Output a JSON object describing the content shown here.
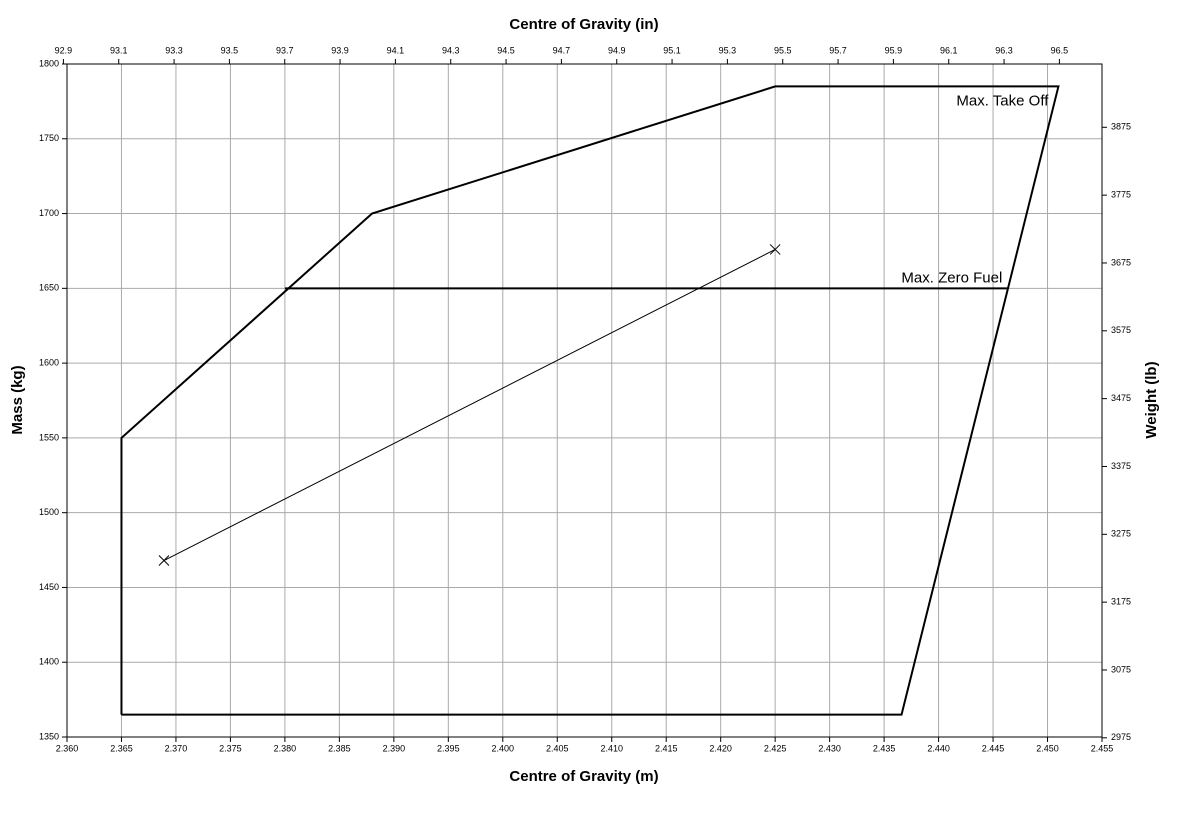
{
  "chart_data": {
    "type": "line",
    "title": "Centre of Gravity (in)",
    "xlabel": "Centre of Gravity (m)",
    "ylabel": "Mass (kg)",
    "y2label": "Weight (lb)",
    "xlim": [
      2.36,
      2.455
    ],
    "xticks": [
      {
        "value": 2.36,
        "label": "2.360"
      },
      {
        "value": 2.365,
        "label": "2.365"
      },
      {
        "value": 2.37,
        "label": "2.370"
      },
      {
        "value": 2.375,
        "label": "2.375"
      },
      {
        "value": 2.38,
        "label": "2.380"
      },
      {
        "value": 2.385,
        "label": "2.385"
      },
      {
        "value": 2.39,
        "label": "2.390"
      },
      {
        "value": 2.395,
        "label": "2.395"
      },
      {
        "value": 2.4,
        "label": "2.400"
      },
      {
        "value": 2.405,
        "label": "2.405"
      },
      {
        "value": 2.41,
        "label": "2.410"
      },
      {
        "value": 2.415,
        "label": "2.415"
      },
      {
        "value": 2.42,
        "label": "2.420"
      },
      {
        "value": 2.425,
        "label": "2.425"
      },
      {
        "value": 2.43,
        "label": "2.430"
      },
      {
        "value": 2.435,
        "label": "2.435"
      },
      {
        "value": 2.44,
        "label": "2.440"
      },
      {
        "value": 2.445,
        "label": "2.445"
      },
      {
        "value": 2.45,
        "label": "2.450"
      },
      {
        "value": 2.455,
        "label": "2.455"
      }
    ],
    "x2lim": [
      92.913,
      96.654
    ],
    "x2ticks": [
      92.9,
      93.1,
      93.3,
      93.5,
      93.7,
      93.9,
      94.1,
      94.3,
      94.5,
      94.7,
      94.9,
      95.1,
      95.3,
      95.5,
      95.7,
      95.9,
      96.1,
      96.3,
      96.5
    ],
    "ylim": [
      1350,
      1800
    ],
    "yticks": [
      1350,
      1400,
      1450,
      1500,
      1550,
      1600,
      1650,
      1700,
      1750,
      1800
    ],
    "y2lim": [
      2976.2,
      3968.3
    ],
    "y2ticks": [
      2975,
      3075,
      3175,
      3275,
      3375,
      3475,
      3575,
      3675,
      3775,
      3875
    ],
    "grid": true,
    "series": [
      {
        "name": "Max. Take Off",
        "color": "#000000",
        "linewidth": 2,
        "x": [
          2.365,
          2.365,
          2.388,
          2.425,
          2.451,
          2.4366,
          2.365
        ],
        "values": [
          1365,
          1550,
          1700,
          1785,
          1785,
          1365,
          1365
        ]
      },
      {
        "name": "Max. Zero Fuel",
        "color": "#000000",
        "linewidth": 2,
        "x": [
          2.38,
          2.4464
        ],
        "values": [
          1650,
          1650
        ]
      },
      {
        "color": "#000000",
        "linewidth": 1,
        "marker": "x",
        "x": [
          2.3689,
          2.425
        ],
        "values": [
          1468,
          1676
        ]
      }
    ]
  }
}
